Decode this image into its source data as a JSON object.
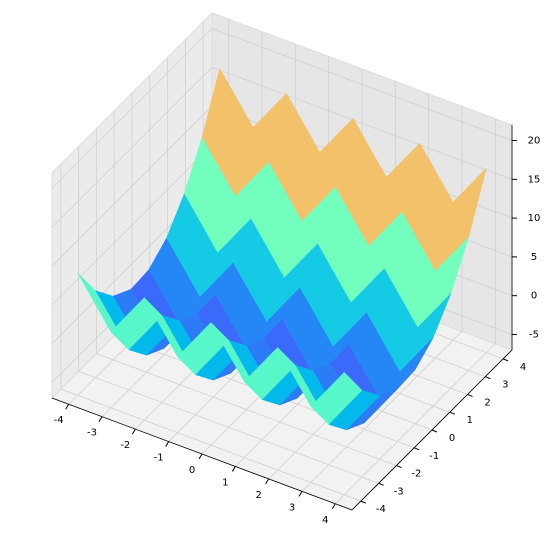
{
  "chart_data": {
    "type": "surface",
    "colormap": "rainbow",
    "grid": true,
    "x": [
      -4,
      -3,
      -2,
      -1,
      0,
      1,
      2,
      3,
      4
    ],
    "y": [
      -4,
      -3,
      -2,
      -1,
      0,
      1,
      2,
      3,
      4
    ],
    "z": [
      [
        8.8,
        2.8,
        8.8,
        2.8,
        8.8,
        2.8,
        8.8,
        2.8,
        8.8
      ],
      [
        4.2,
        -1.8,
        4.2,
        -1.8,
        4.2,
        -1.8,
        4.2,
        -1.8,
        4.2
      ],
      [
        1.2,
        -4.8,
        1.2,
        -4.8,
        1.2,
        -4.8,
        1.2,
        -4.8,
        1.2
      ],
      [
        -0.2,
        -6.2,
        -0.2,
        -6.2,
        -0.2,
        -6.2,
        -0.2,
        -6.2,
        -0.2
      ],
      [
        0,
        -6,
        0,
        -6,
        0,
        -6,
        0,
        -6,
        0
      ],
      [
        1.8,
        -4.2,
        1.8,
        -4.2,
        1.8,
        -4.2,
        1.8,
        -4.2,
        1.8
      ],
      [
        5.2,
        -0.8,
        5.2,
        -0.8,
        5.2,
        -0.8,
        5.2,
        -0.8,
        5.2
      ],
      [
        10.2,
        4.2,
        10.2,
        4.2,
        10.2,
        4.2,
        10.2,
        4.2,
        10.2
      ],
      [
        16.8,
        10.8,
        16.8,
        10.8,
        16.8,
        10.8,
        16.8,
        10.8,
        16.8
      ]
    ],
    "xlim": [
      -4.5,
      4.5
    ],
    "ylim": [
      -4.5,
      4.5
    ],
    "zlim": [
      -7,
      22
    ],
    "xticks": [
      -4,
      -3,
      -2,
      -1,
      0,
      1,
      2,
      3,
      4
    ],
    "yticks": [
      -4,
      -3,
      -2,
      -1,
      0,
      1,
      2,
      3,
      4
    ],
    "zticks": [
      -5,
      0,
      5,
      10,
      15,
      20
    ]
  }
}
